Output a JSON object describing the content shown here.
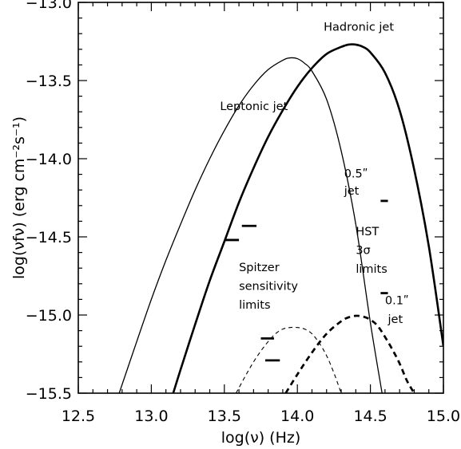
{
  "chart_data": {
    "type": "line",
    "title": "",
    "xlabel": "log(ν)  (Hz)",
    "ylabel": "log(νfν)  (erg cm⁻²s⁻¹)",
    "xlim": [
      12.5,
      15.0
    ],
    "ylim": [
      -15.5,
      -13.0
    ],
    "grid": false,
    "xticks": [
      12.5,
      13.0,
      13.5,
      14.0,
      14.5,
      15.0
    ],
    "xtick_labels": [
      "12.5",
      "13.0",
      "13.5",
      "14.0",
      "14.5",
      "15.0"
    ],
    "yticks": [
      -13.0,
      -13.5,
      -14.0,
      -14.5,
      -15.0,
      -15.5
    ],
    "ytick_labels": [
      "−13.0",
      "−13.5",
      "−14.0",
      "−14.5",
      "−15.0",
      "−15.5"
    ],
    "series": [
      {
        "name": "Leptonic jet",
        "style": "thin-solid",
        "x": [
          12.78,
          12.9,
          13.0,
          13.1,
          13.2,
          13.3,
          13.4,
          13.5,
          13.6,
          13.7,
          13.8,
          13.9,
          13.95,
          14.0,
          14.05,
          14.1,
          14.2,
          14.3,
          14.4,
          14.5,
          14.58
        ],
        "y": [
          -15.5,
          -15.17,
          -14.9,
          -14.65,
          -14.42,
          -14.2,
          -14.0,
          -13.82,
          -13.66,
          -13.53,
          -13.43,
          -13.37,
          -13.355,
          -13.36,
          -13.39,
          -13.44,
          -13.62,
          -13.95,
          -14.42,
          -15.05,
          -15.5
        ]
      },
      {
        "name": "Hadronic jet",
        "style": "thick-solid",
        "x": [
          13.15,
          13.2,
          13.3,
          13.4,
          13.5,
          13.6,
          13.7,
          13.8,
          13.9,
          14.0,
          14.1,
          14.2,
          14.3,
          14.35,
          14.4,
          14.45,
          14.5,
          14.6,
          14.7,
          14.8,
          14.9,
          15.0
        ],
        "y": [
          -15.5,
          -15.35,
          -15.06,
          -14.78,
          -14.53,
          -14.28,
          -14.06,
          -13.86,
          -13.69,
          -13.54,
          -13.42,
          -13.33,
          -13.285,
          -13.27,
          -13.27,
          -13.285,
          -13.32,
          -13.45,
          -13.69,
          -14.07,
          -14.56,
          -15.2
        ]
      },
      {
        "name": "",
        "style": "thin-dashed",
        "x": [
          13.58,
          13.65,
          13.7,
          13.75,
          13.8,
          13.85,
          13.9,
          13.95,
          14.0,
          14.05,
          14.1,
          14.15,
          14.2,
          14.25,
          14.3
        ],
        "y": [
          -15.5,
          -15.38,
          -15.3,
          -15.23,
          -15.17,
          -15.12,
          -15.09,
          -15.08,
          -15.08,
          -15.09,
          -15.12,
          -15.18,
          -15.26,
          -15.37,
          -15.5
        ]
      },
      {
        "name": "",
        "style": "thick-dashed",
        "x": [
          13.92,
          14.0,
          14.1,
          14.2,
          14.3,
          14.35,
          14.4,
          14.45,
          14.5,
          14.55,
          14.6,
          14.65,
          14.7,
          14.75,
          14.8
        ],
        "y": [
          -15.5,
          -15.38,
          -15.24,
          -15.12,
          -15.04,
          -15.015,
          -15.005,
          -15.01,
          -15.03,
          -15.07,
          -15.14,
          -15.22,
          -15.31,
          -15.42,
          -15.5
        ]
      }
    ],
    "limits": [
      {
        "x1": 13.5,
        "x2": 13.6,
        "y": -14.52
      },
      {
        "x1": 13.62,
        "x2": 13.72,
        "y": -14.43
      },
      {
        "x1": 13.75,
        "x2": 13.84,
        "y": -15.15
      },
      {
        "x1": 13.78,
        "x2": 13.88,
        "y": -15.29
      },
      {
        "x1": 14.57,
        "x2": 14.62,
        "y": -14.27
      },
      {
        "x1": 14.57,
        "x2": 14.62,
        "y": -14.86
      }
    ],
    "annotations": [
      {
        "text": "Hadronic jet",
        "x": 14.18,
        "y": -13.18
      },
      {
        "text": "Leptonic jet",
        "x": 13.47,
        "y": -13.69
      },
      {
        "text": "0.5ʺ",
        "x": 14.32,
        "y": -14.12
      },
      {
        "text": "jet",
        "x": 14.32,
        "y": -14.23
      },
      {
        "text": "HST",
        "x": 14.4,
        "y": -14.49
      },
      {
        "text": "3σ",
        "x": 14.4,
        "y": -14.61
      },
      {
        "text": "limits",
        "x": 14.4,
        "y": -14.73
      },
      {
        "text": "Spitzer",
        "x": 13.6,
        "y": -14.72
      },
      {
        "text": "sensitivity",
        "x": 13.6,
        "y": -14.84
      },
      {
        "text": "limits",
        "x": 13.6,
        "y": -14.96
      },
      {
        "text": "0.1ʺ",
        "x": 14.6,
        "y": -14.93
      },
      {
        "text": "jet",
        "x": 14.62,
        "y": -15.05
      }
    ]
  }
}
